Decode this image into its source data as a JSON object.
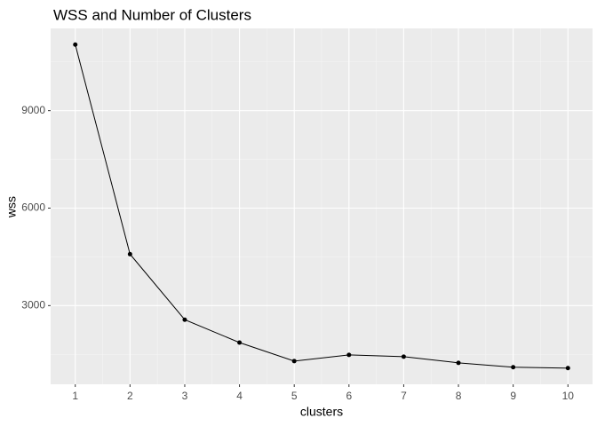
{
  "chart_data": {
    "type": "line",
    "title": "WSS and Number of Clusters",
    "x_label": "clusters",
    "y_label": "wss",
    "x": [
      1,
      2,
      3,
      4,
      5,
      6,
      7,
      8,
      9,
      10
    ],
    "series": [
      {
        "name": "wss",
        "color": "#000000",
        "values": [
          11033,
          4583,
          2566,
          1862,
          1293,
          1482,
          1428,
          1238,
          1103,
          1076
        ]
      }
    ],
    "xlim": [
      0.55,
      10.45
    ],
    "xticks": [
      1,
      2,
      3,
      4,
      5,
      6,
      7,
      8,
      9,
      10
    ],
    "ylim": [
      578,
      11531
    ],
    "yticks": [
      3000,
      6000,
      9000
    ],
    "grid": true,
    "legend": false
  }
}
